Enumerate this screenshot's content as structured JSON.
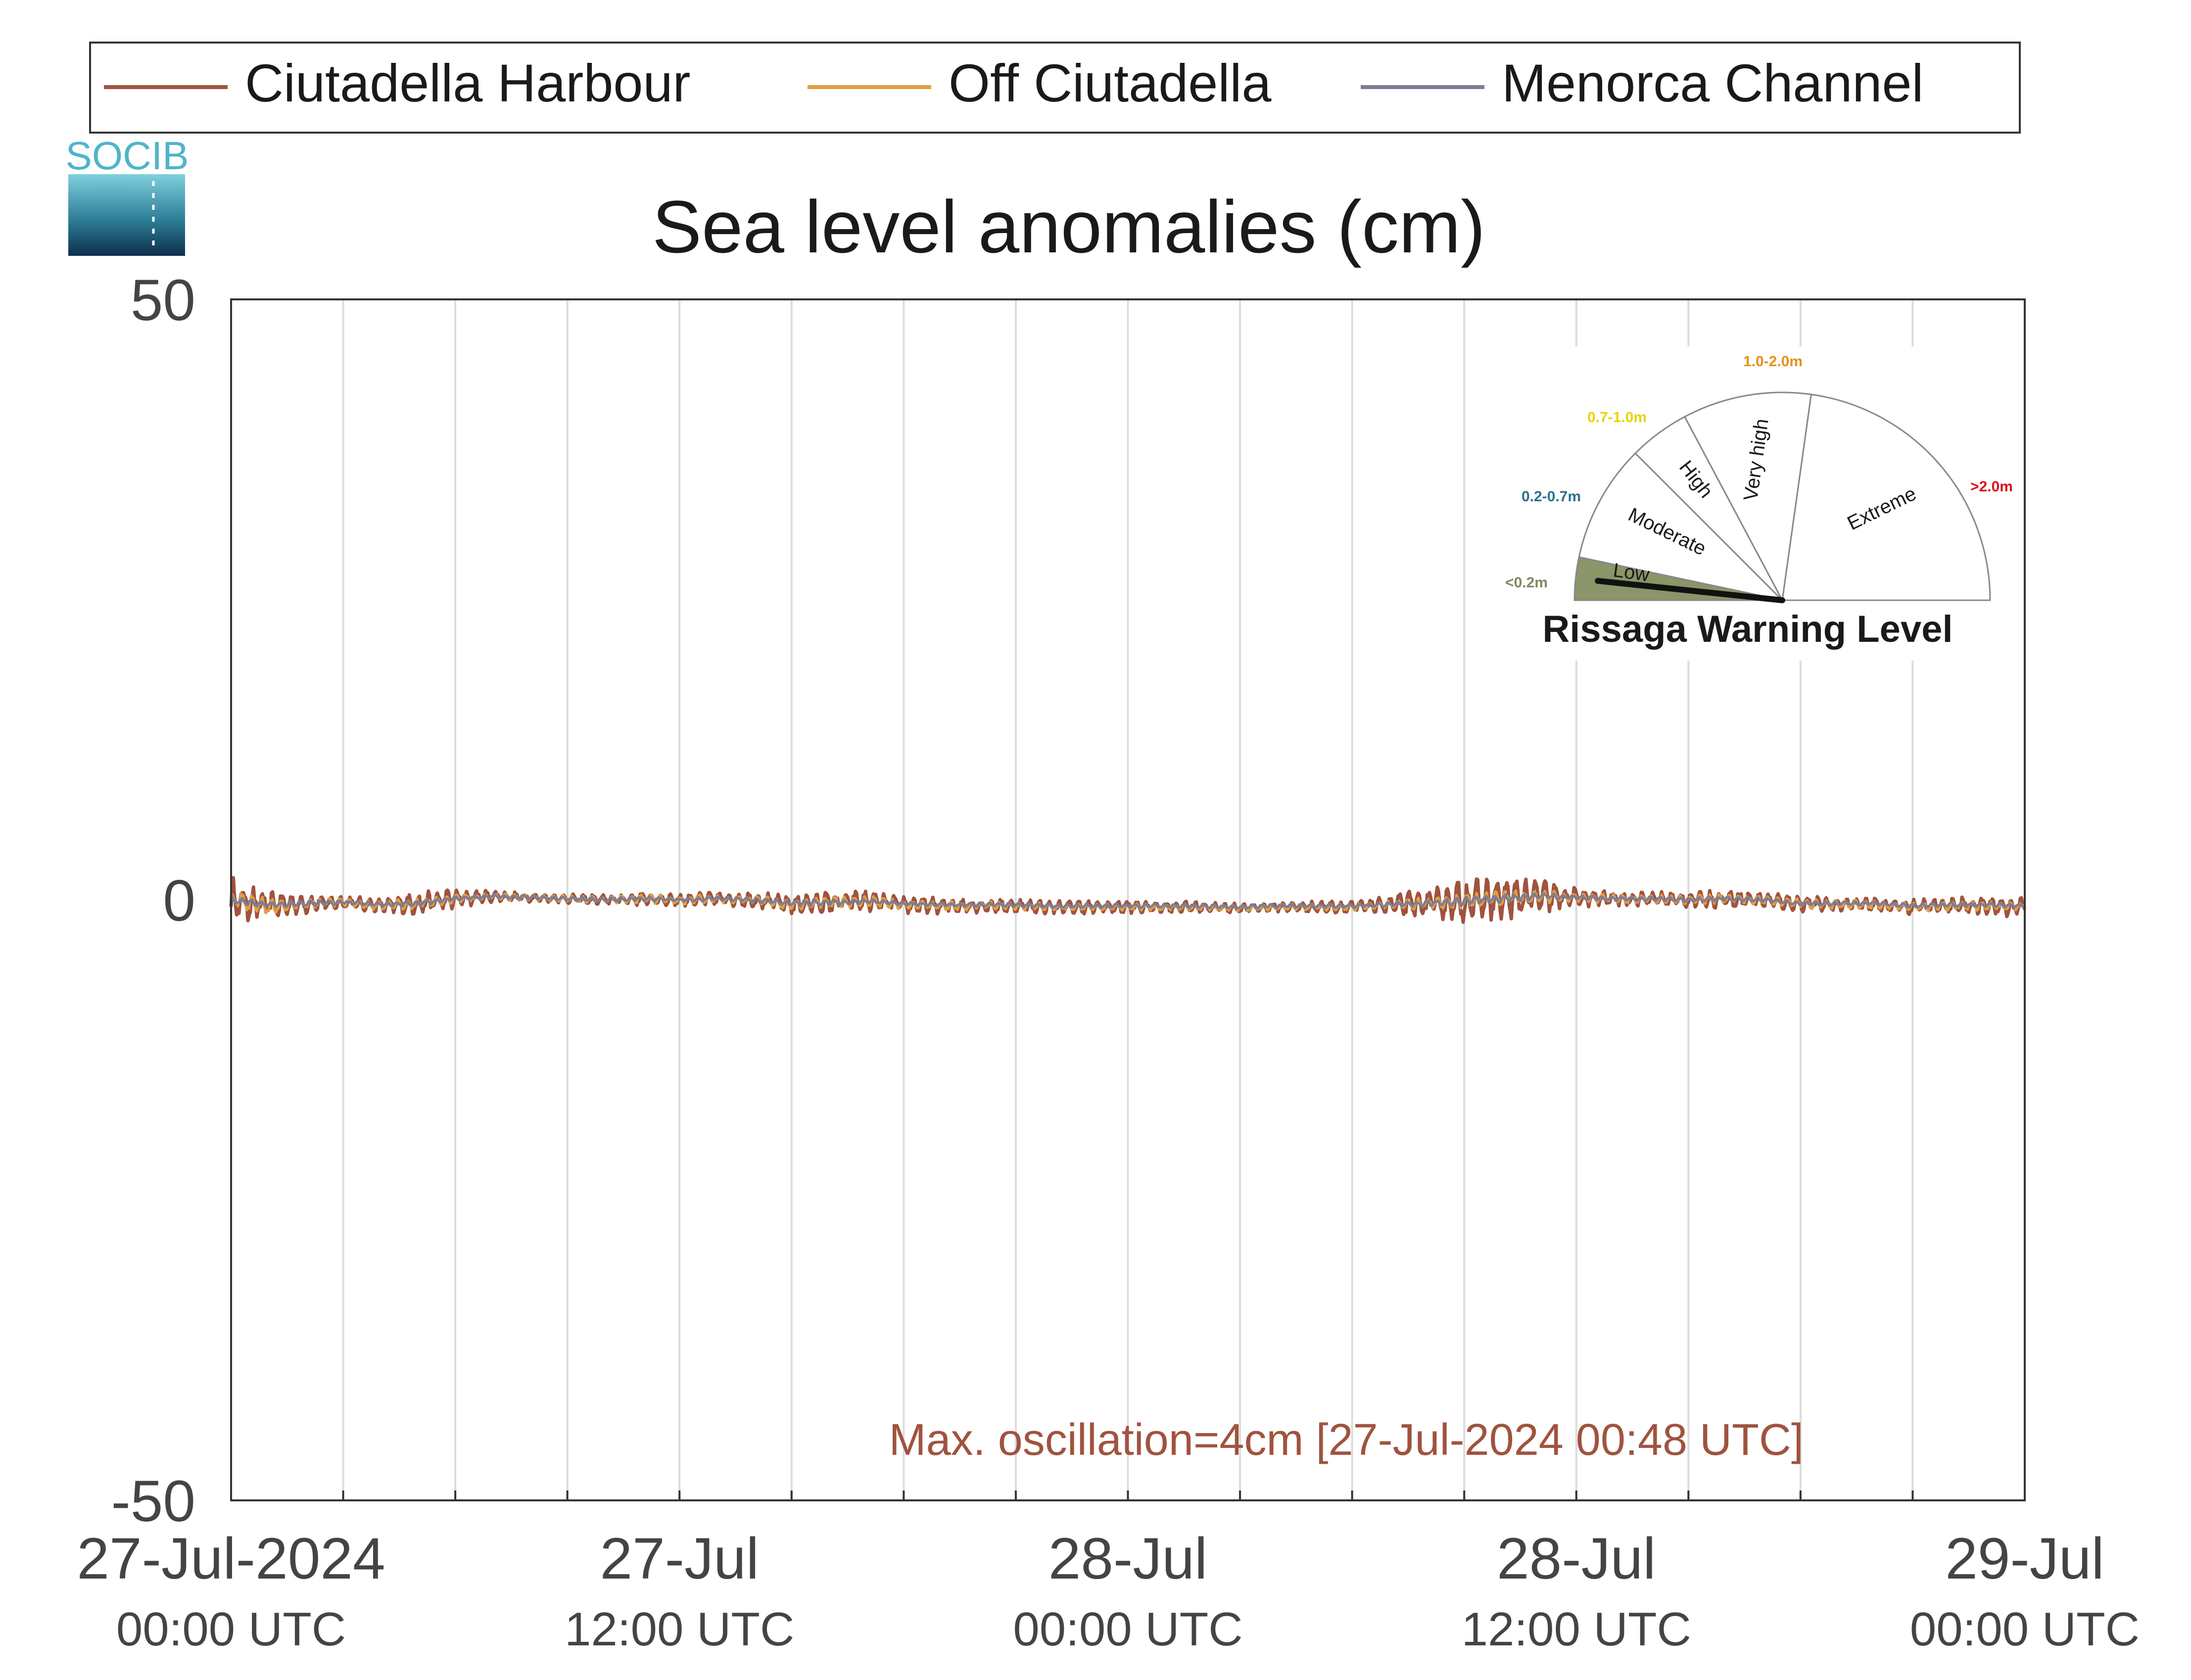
{
  "chart_data": {
    "type": "line",
    "title": "Sea level anomalies (cm)",
    "xlabel": "",
    "ylabel": "",
    "ylim": [
      -50,
      50
    ],
    "yticks": [
      -50,
      0,
      50
    ],
    "xlim_hours": [
      0,
      48
    ],
    "x_gridlines_every_hours": 3,
    "x_ticks": [
      {
        "hour": 0,
        "date": "27-Jul-2024",
        "time": "00:00 UTC"
      },
      {
        "hour": 12,
        "date": "27-Jul",
        "time": "12:00 UTC"
      },
      {
        "hour": 24,
        "date": "28-Jul",
        "time": "00:00 UTC"
      },
      {
        "hour": 36,
        "date": "28-Jul",
        "time": "12:00 UTC"
      },
      {
        "hour": 48,
        "date": "29-Jul",
        "time": "00:00 UTC"
      }
    ],
    "legend_position": "top",
    "grid": "vertical",
    "series": [
      {
        "name": "Ciutadella Harbour",
        "color": "#A0533F",
        "x_hours": [
          0,
          1,
          2,
          3,
          4,
          5,
          6,
          7,
          8,
          9,
          10,
          11,
          12,
          13,
          14,
          15,
          16,
          17,
          18,
          19,
          20,
          21,
          22,
          23,
          24,
          25,
          26,
          27,
          28,
          29,
          30,
          31,
          32,
          33,
          34,
          35,
          36,
          37,
          38,
          39,
          40,
          41,
          42,
          43,
          44,
          45,
          46,
          47,
          48
        ],
        "baseline": [
          0.0,
          -0.5,
          -0.3,
          -0.2,
          -0.5,
          -0.3,
          0.1,
          0.3,
          0.2,
          0.1,
          0.0,
          0.1,
          0.0,
          0.1,
          0.0,
          -0.4,
          -0.2,
          -0.1,
          -0.4,
          -0.5,
          -0.5,
          -0.5,
          -0.6,
          -0.6,
          -0.6,
          -0.6,
          -0.6,
          -0.7,
          -0.6,
          -0.6,
          -0.6,
          -0.4,
          -0.3,
          -0.1,
          0.1,
          0.3,
          0.2,
          0.1,
          0.1,
          0.0,
          0.1,
          0.0,
          -0.3,
          -0.4,
          -0.4,
          -0.6,
          -0.5,
          -0.5,
          -0.6
        ],
        "amplitude": [
          2.0,
          1.3,
          0.9,
          0.6,
          0.6,
          1.0,
          0.9,
          0.5,
          0.4,
          0.4,
          0.5,
          0.6,
          0.6,
          0.6,
          0.7,
          0.8,
          1.0,
          0.9,
          0.8,
          0.7,
          0.6,
          0.6,
          0.6,
          0.6,
          0.6,
          0.5,
          0.5,
          0.4,
          0.4,
          0.5,
          0.6,
          0.8,
          1.4,
          1.9,
          1.8,
          1.6,
          0.8,
          0.7,
          0.6,
          0.7,
          0.8,
          0.7,
          0.7,
          0.6,
          0.6,
          0.7,
          0.8,
          0.9,
          0.9
        ]
      },
      {
        "name": "Off Ciutadella",
        "color": "#E3A03F",
        "x_hours": [
          0,
          1,
          2,
          3,
          4,
          5,
          6,
          7,
          8,
          9,
          10,
          11,
          12,
          13,
          14,
          15,
          16,
          17,
          18,
          19,
          20,
          21,
          22,
          23,
          24,
          25,
          26,
          27,
          28,
          29,
          30,
          31,
          32,
          33,
          34,
          35,
          36,
          37,
          38,
          39,
          40,
          41,
          42,
          43,
          44,
          45,
          46,
          47,
          48
        ],
        "baseline": [
          0.0,
          -0.5,
          -0.3,
          -0.2,
          -0.5,
          -0.3,
          0.1,
          0.3,
          0.2,
          0.1,
          0.0,
          0.1,
          0.0,
          0.1,
          0.0,
          -0.4,
          -0.2,
          -0.1,
          -0.4,
          -0.5,
          -0.5,
          -0.5,
          -0.6,
          -0.6,
          -0.6,
          -0.6,
          -0.6,
          -0.7,
          -0.6,
          -0.6,
          -0.6,
          -0.4,
          -0.3,
          -0.1,
          0.1,
          0.3,
          0.2,
          0.1,
          0.1,
          0.0,
          0.1,
          0.0,
          -0.3,
          -0.4,
          -0.4,
          -0.6,
          -0.5,
          -0.5,
          -0.6
        ],
        "amplitude": [
          0.9,
          0.7,
          0.5,
          0.4,
          0.4,
          0.5,
          0.4,
          0.3,
          0.3,
          0.3,
          0.3,
          0.4,
          0.4,
          0.4,
          0.4,
          0.5,
          0.5,
          0.5,
          0.4,
          0.4,
          0.4,
          0.4,
          0.3,
          0.3,
          0.3,
          0.3,
          0.3,
          0.3,
          0.3,
          0.3,
          0.3,
          0.4,
          0.6,
          0.7,
          0.7,
          0.6,
          0.4,
          0.4,
          0.4,
          0.4,
          0.4,
          0.4,
          0.4,
          0.4,
          0.4,
          0.4,
          0.4,
          0.4,
          0.4
        ]
      },
      {
        "name": "Menorca Channel",
        "color": "#7C7E96",
        "x_hours": [
          0,
          1,
          2,
          3,
          4,
          5,
          6,
          7,
          8,
          9,
          10,
          11,
          12,
          13,
          14,
          15,
          16,
          17,
          18,
          19,
          20,
          21,
          22,
          23,
          24,
          25,
          26,
          27,
          28,
          29,
          30,
          31,
          32,
          33,
          34,
          35,
          36,
          37,
          38,
          39,
          40,
          41,
          42,
          43,
          44,
          45,
          46,
          47,
          48
        ],
        "baseline": [
          0.0,
          -0.4,
          -0.3,
          -0.2,
          -0.4,
          -0.3,
          0.1,
          0.3,
          0.2,
          0.1,
          0.0,
          0.1,
          0.0,
          0.1,
          0.0,
          -0.3,
          -0.2,
          -0.1,
          -0.3,
          -0.4,
          -0.4,
          -0.4,
          -0.5,
          -0.5,
          -0.5,
          -0.5,
          -0.5,
          -0.6,
          -0.5,
          -0.5,
          -0.5,
          -0.4,
          -0.3,
          -0.1,
          0.1,
          0.3,
          0.2,
          0.1,
          0.1,
          0.0,
          0.1,
          0.0,
          -0.3,
          -0.3,
          -0.3,
          -0.5,
          -0.4,
          -0.4,
          -0.5
        ],
        "amplitude": [
          0.4,
          0.3,
          0.3,
          0.2,
          0.2,
          0.3,
          0.2,
          0.2,
          0.2,
          0.2,
          0.2,
          0.2,
          0.2,
          0.2,
          0.2,
          0.3,
          0.3,
          0.2,
          0.2,
          0.2,
          0.2,
          0.2,
          0.2,
          0.2,
          0.2,
          0.2,
          0.2,
          0.2,
          0.2,
          0.2,
          0.2,
          0.2,
          0.3,
          0.4,
          0.4,
          0.3,
          0.2,
          0.2,
          0.2,
          0.2,
          0.2,
          0.2,
          0.2,
          0.2,
          0.2,
          0.2,
          0.2,
          0.2,
          0.2
        ]
      }
    ],
    "annotation": "Max. oscillation=4cm [27-Jul-2024 00:48 UTC]",
    "annotation_color": "#A0533F"
  },
  "logo": {
    "text": "SOCIB"
  },
  "gauge": {
    "title": "Rissaga Warning Level",
    "current_level": "Low",
    "sectors": [
      {
        "label": "Low",
        "range": "<0.2m",
        "range_color": "#7D8A5F",
        "fill": "#8A9568"
      },
      {
        "label": "Moderate",
        "range": "0.2-0.7m",
        "range_color": "#2F6F8F",
        "fill": "#FFFFFF"
      },
      {
        "label": "High",
        "range": "0.7-1.0m",
        "range_color": "#E8D400",
        "fill": "#FFFFFF"
      },
      {
        "label": "Very high",
        "range": "1.0-2.0m",
        "range_color": "#E8901C",
        "fill": "#FFFFFF"
      },
      {
        "label": "Extreme",
        "range": ">2.0m",
        "range_color": "#D8121E",
        "fill": "#FFFFFF"
      }
    ]
  }
}
